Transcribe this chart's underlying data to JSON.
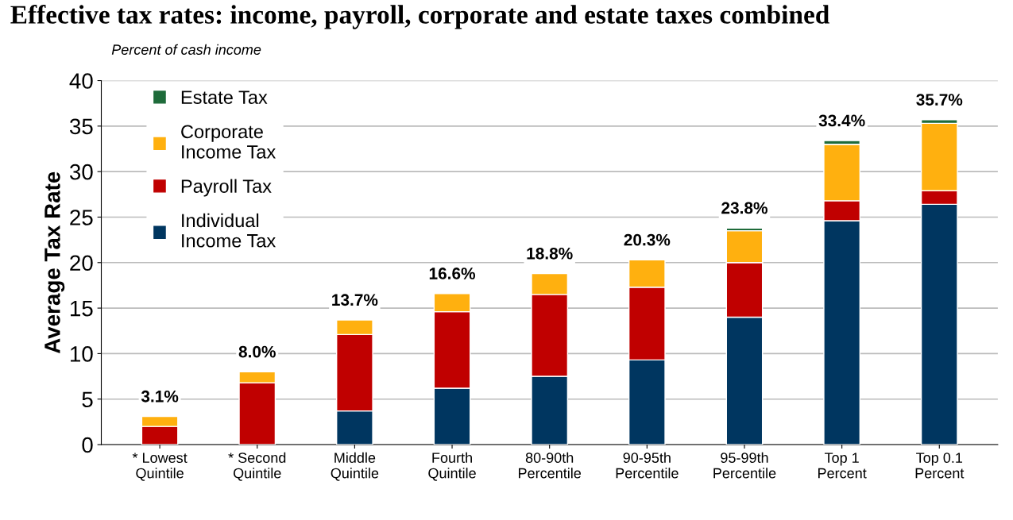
{
  "chart_data": {
    "type": "bar",
    "stacked": true,
    "title": "Effective tax rates: income, payroll, corporate and estate taxes combined",
    "subtitle": "Percent of cash income",
    "ylabel": "Average Tax Rate",
    "categories": [
      "* Lowest\nQuintile",
      "* Second\nQuintile",
      "Middle\nQuintile",
      "Fourth\nQuintile",
      "80-90th\nPercentile",
      "90-95th\nPercentile",
      "95-99th\nPercentile",
      "Top 1\nPercent",
      "Top 0.1\nPercent"
    ],
    "series": [
      {
        "name": "Individual\nIncome Tax",
        "color": "#003660",
        "values": [
          null,
          null,
          3.7,
          6.2,
          7.5,
          9.3,
          14.0,
          24.6,
          26.4
        ]
      },
      {
        "name": "Payroll Tax",
        "color": "#c00000",
        "values": [
          2.0,
          6.8,
          8.4,
          8.4,
          9.0,
          8.0,
          6.0,
          2.2,
          1.5
        ]
      },
      {
        "name": "Corporate\nIncome Tax",
        "color": "#ffb00f",
        "values": [
          1.1,
          1.2,
          1.6,
          2.0,
          2.3,
          3.0,
          3.5,
          6.2,
          7.4
        ]
      },
      {
        "name": "Estate Tax",
        "color": "#1e6b3a",
        "values": [
          null,
          null,
          null,
          null,
          null,
          null,
          0.3,
          0.4,
          0.4
        ]
      }
    ],
    "totals": [
      "3.1%",
      "8.0%",
      "13.7%",
      "16.6%",
      "18.8%",
      "20.3%",
      "23.8%",
      "33.4%",
      "35.7%"
    ],
    "ylim": [
      0,
      40
    ],
    "yticks": [
      0,
      5,
      10,
      15,
      20,
      25,
      30,
      35,
      40
    ],
    "grid": "y",
    "legend": "top left"
  }
}
